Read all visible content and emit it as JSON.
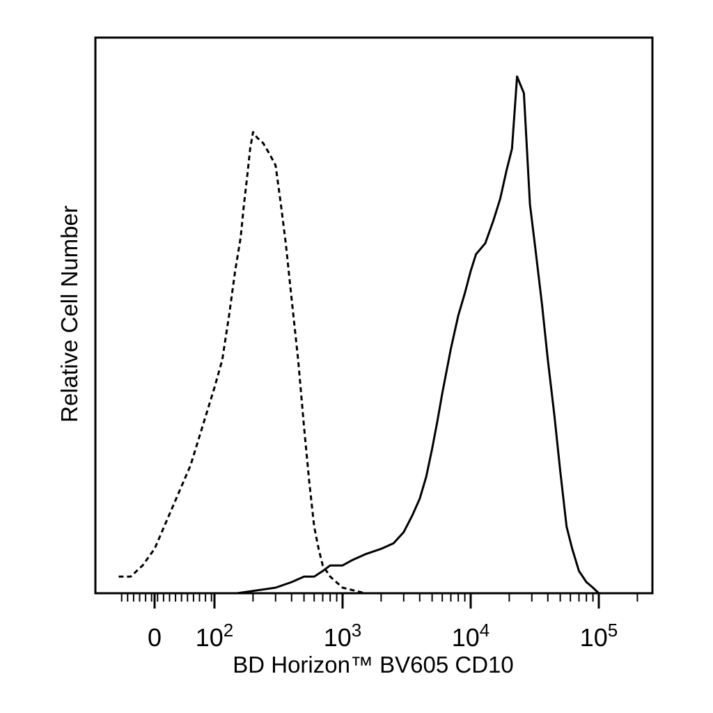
{
  "chart_data": {
    "type": "line",
    "title": "",
    "xlabel": "BD Horizon™ BV605 CD10",
    "ylabel": "Relative Cell Number",
    "x_scale": "biexponential (log above ~10^2)",
    "xlim": [
      -60,
      250000
    ],
    "ylim": [
      0,
      100
    ],
    "grid": false,
    "legend": "none",
    "x_ticks": [
      {
        "value": 0,
        "label": "0"
      },
      {
        "value": 100,
        "base": "10",
        "exp": "2"
      },
      {
        "value": 1000,
        "base": "10",
        "exp": "3"
      },
      {
        "value": 10000,
        "base": "10",
        "exp": "4"
      },
      {
        "value": 100000,
        "base": "10",
        "exp": "5"
      }
    ],
    "series": [
      {
        "style": "dashed",
        "color": "#000000",
        "points": [
          [
            -60,
            3
          ],
          [
            -40,
            3
          ],
          [
            -20,
            5
          ],
          [
            0,
            8
          ],
          [
            20,
            13
          ],
          [
            40,
            18
          ],
          [
            60,
            23
          ],
          [
            80,
            30
          ],
          [
            100,
            37
          ],
          [
            115,
            42
          ],
          [
            130,
            50
          ],
          [
            145,
            58
          ],
          [
            160,
            64
          ],
          [
            170,
            70
          ],
          [
            180,
            75
          ],
          [
            190,
            80
          ],
          [
            200,
            83
          ],
          [
            215,
            82
          ],
          [
            240,
            81
          ],
          [
            270,
            79
          ],
          [
            300,
            77
          ],
          [
            330,
            70
          ],
          [
            360,
            63
          ],
          [
            400,
            53
          ],
          [
            450,
            42
          ],
          [
            500,
            30
          ],
          [
            550,
            20
          ],
          [
            600,
            12
          ],
          [
            650,
            8
          ],
          [
            700,
            5
          ],
          [
            800,
            3
          ],
          [
            1000,
            1
          ],
          [
            1500,
            0
          ],
          [
            3000,
            0
          ],
          [
            100000,
            0
          ]
        ]
      },
      {
        "style": "solid",
        "color": "#000000",
        "points": [
          [
            150,
            0
          ],
          [
            300,
            1
          ],
          [
            400,
            2
          ],
          [
            500,
            3
          ],
          [
            600,
            3
          ],
          [
            700,
            4
          ],
          [
            800,
            5
          ],
          [
            1000,
            5
          ],
          [
            1200,
            6
          ],
          [
            1500,
            7
          ],
          [
            2000,
            8
          ],
          [
            2500,
            9
          ],
          [
            3000,
            11
          ],
          [
            3500,
            14
          ],
          [
            4000,
            17
          ],
          [
            4500,
            21
          ],
          [
            5000,
            26
          ],
          [
            5500,
            31
          ],
          [
            6000,
            36
          ],
          [
            7000,
            44
          ],
          [
            8000,
            50
          ],
          [
            9000,
            54
          ],
          [
            10000,
            58
          ],
          [
            11000,
            61
          ],
          [
            13000,
            63
          ],
          [
            15000,
            67
          ],
          [
            17000,
            71
          ],
          [
            19000,
            76
          ],
          [
            21000,
            80
          ],
          [
            23000,
            93
          ],
          [
            26000,
            90
          ],
          [
            29000,
            70
          ],
          [
            32000,
            62
          ],
          [
            36000,
            52
          ],
          [
            40000,
            42
          ],
          [
            45000,
            32
          ],
          [
            50000,
            22
          ],
          [
            56000,
            12
          ],
          [
            62000,
            8
          ],
          [
            70000,
            4
          ],
          [
            80000,
            2
          ],
          [
            90000,
            1
          ],
          [
            100000,
            0
          ],
          [
            250000,
            0
          ]
        ]
      }
    ]
  }
}
